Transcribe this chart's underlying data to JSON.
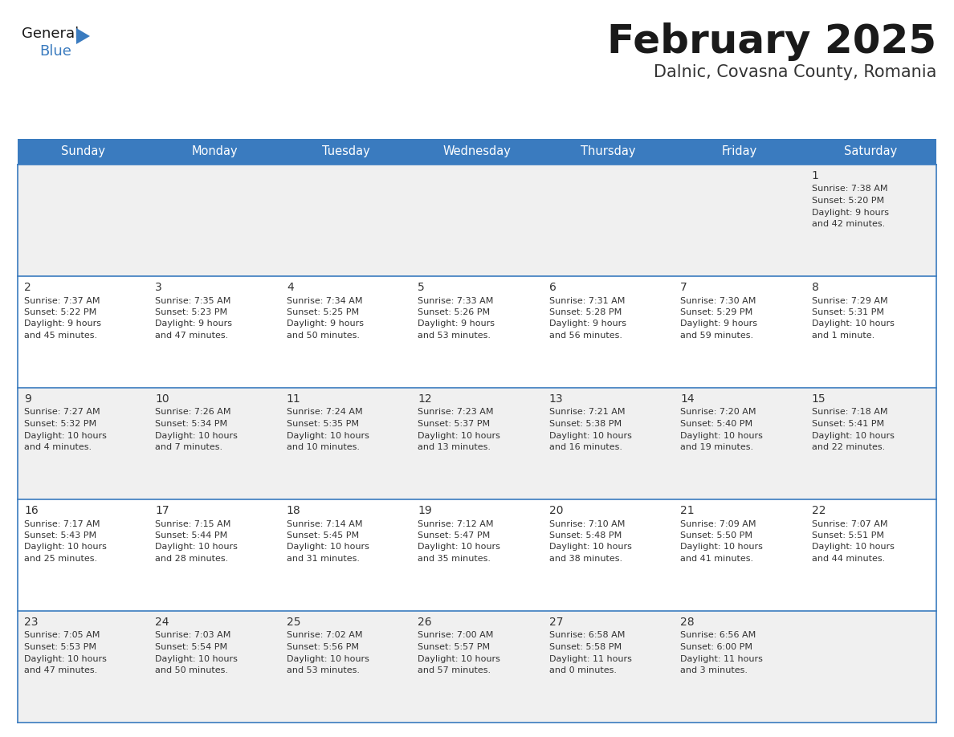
{
  "title": "February 2025",
  "subtitle": "Dalnic, Covasna County, Romania",
  "header_color": "#3a7bbf",
  "header_text_color": "#ffffff",
  "day_names": [
    "Sunday",
    "Monday",
    "Tuesday",
    "Wednesday",
    "Thursday",
    "Friday",
    "Saturday"
  ],
  "bg_color": "#ffffff",
  "cell_bg_light": "#f0f0f0",
  "cell_bg_white": "#ffffff",
  "line_color": "#3a7bbf",
  "title_color": "#1a1a1a",
  "subtitle_color": "#333333",
  "text_color": "#333333",
  "logo_general_color": "#1a1a1a",
  "logo_blue_color": "#3a7bbf",
  "days_data": [
    {
      "day": 1,
      "week": 0,
      "col": 6,
      "sunrise": "7:38 AM",
      "sunset": "5:20 PM",
      "daylight": "9 hours\nand 42 minutes."
    },
    {
      "day": 2,
      "week": 1,
      "col": 0,
      "sunrise": "7:37 AM",
      "sunset": "5:22 PM",
      "daylight": "9 hours\nand 45 minutes."
    },
    {
      "day": 3,
      "week": 1,
      "col": 1,
      "sunrise": "7:35 AM",
      "sunset": "5:23 PM",
      "daylight": "9 hours\nand 47 minutes."
    },
    {
      "day": 4,
      "week": 1,
      "col": 2,
      "sunrise": "7:34 AM",
      "sunset": "5:25 PM",
      "daylight": "9 hours\nand 50 minutes."
    },
    {
      "day": 5,
      "week": 1,
      "col": 3,
      "sunrise": "7:33 AM",
      "sunset": "5:26 PM",
      "daylight": "9 hours\nand 53 minutes."
    },
    {
      "day": 6,
      "week": 1,
      "col": 4,
      "sunrise": "7:31 AM",
      "sunset": "5:28 PM",
      "daylight": "9 hours\nand 56 minutes."
    },
    {
      "day": 7,
      "week": 1,
      "col": 5,
      "sunrise": "7:30 AM",
      "sunset": "5:29 PM",
      "daylight": "9 hours\nand 59 minutes."
    },
    {
      "day": 8,
      "week": 1,
      "col": 6,
      "sunrise": "7:29 AM",
      "sunset": "5:31 PM",
      "daylight": "10 hours\nand 1 minute."
    },
    {
      "day": 9,
      "week": 2,
      "col": 0,
      "sunrise": "7:27 AM",
      "sunset": "5:32 PM",
      "daylight": "10 hours\nand 4 minutes."
    },
    {
      "day": 10,
      "week": 2,
      "col": 1,
      "sunrise": "7:26 AM",
      "sunset": "5:34 PM",
      "daylight": "10 hours\nand 7 minutes."
    },
    {
      "day": 11,
      "week": 2,
      "col": 2,
      "sunrise": "7:24 AM",
      "sunset": "5:35 PM",
      "daylight": "10 hours\nand 10 minutes."
    },
    {
      "day": 12,
      "week": 2,
      "col": 3,
      "sunrise": "7:23 AM",
      "sunset": "5:37 PM",
      "daylight": "10 hours\nand 13 minutes."
    },
    {
      "day": 13,
      "week": 2,
      "col": 4,
      "sunrise": "7:21 AM",
      "sunset": "5:38 PM",
      "daylight": "10 hours\nand 16 minutes."
    },
    {
      "day": 14,
      "week": 2,
      "col": 5,
      "sunrise": "7:20 AM",
      "sunset": "5:40 PM",
      "daylight": "10 hours\nand 19 minutes."
    },
    {
      "day": 15,
      "week": 2,
      "col": 6,
      "sunrise": "7:18 AM",
      "sunset": "5:41 PM",
      "daylight": "10 hours\nand 22 minutes."
    },
    {
      "day": 16,
      "week": 3,
      "col": 0,
      "sunrise": "7:17 AM",
      "sunset": "5:43 PM",
      "daylight": "10 hours\nand 25 minutes."
    },
    {
      "day": 17,
      "week": 3,
      "col": 1,
      "sunrise": "7:15 AM",
      "sunset": "5:44 PM",
      "daylight": "10 hours\nand 28 minutes."
    },
    {
      "day": 18,
      "week": 3,
      "col": 2,
      "sunrise": "7:14 AM",
      "sunset": "5:45 PM",
      "daylight": "10 hours\nand 31 minutes."
    },
    {
      "day": 19,
      "week": 3,
      "col": 3,
      "sunrise": "7:12 AM",
      "sunset": "5:47 PM",
      "daylight": "10 hours\nand 35 minutes."
    },
    {
      "day": 20,
      "week": 3,
      "col": 4,
      "sunrise": "7:10 AM",
      "sunset": "5:48 PM",
      "daylight": "10 hours\nand 38 minutes."
    },
    {
      "day": 21,
      "week": 3,
      "col": 5,
      "sunrise": "7:09 AM",
      "sunset": "5:50 PM",
      "daylight": "10 hours\nand 41 minutes."
    },
    {
      "day": 22,
      "week": 3,
      "col": 6,
      "sunrise": "7:07 AM",
      "sunset": "5:51 PM",
      "daylight": "10 hours\nand 44 minutes."
    },
    {
      "day": 23,
      "week": 4,
      "col": 0,
      "sunrise": "7:05 AM",
      "sunset": "5:53 PM",
      "daylight": "10 hours\nand 47 minutes."
    },
    {
      "day": 24,
      "week": 4,
      "col": 1,
      "sunrise": "7:03 AM",
      "sunset": "5:54 PM",
      "daylight": "10 hours\nand 50 minutes."
    },
    {
      "day": 25,
      "week": 4,
      "col": 2,
      "sunrise": "7:02 AM",
      "sunset": "5:56 PM",
      "daylight": "10 hours\nand 53 minutes."
    },
    {
      "day": 26,
      "week": 4,
      "col": 3,
      "sunrise": "7:00 AM",
      "sunset": "5:57 PM",
      "daylight": "10 hours\nand 57 minutes."
    },
    {
      "day": 27,
      "week": 4,
      "col": 4,
      "sunrise": "6:58 AM",
      "sunset": "5:58 PM",
      "daylight": "11 hours\nand 0 minutes."
    },
    {
      "day": 28,
      "week": 4,
      "col": 5,
      "sunrise": "6:56 AM",
      "sunset": "6:00 PM",
      "daylight": "11 hours\nand 3 minutes."
    }
  ]
}
